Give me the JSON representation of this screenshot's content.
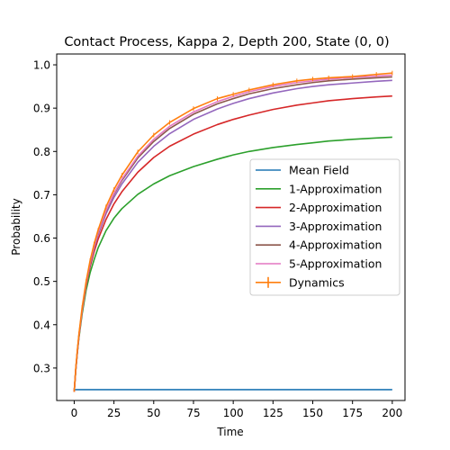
{
  "chart_data": {
    "type": "line",
    "title": "Contact Process, Kappa 2, Depth 200, State (0, 0)",
    "xlabel": "Time",
    "ylabel": "Probability",
    "xlim": [
      -11,
      208
    ],
    "ylim": [
      0.225,
      1.025
    ],
    "xticks": [
      0,
      25,
      50,
      75,
      100,
      125,
      150,
      175,
      200
    ],
    "yticks": [
      0.3,
      0.4,
      0.5,
      0.6,
      0.7,
      0.8,
      0.9,
      1.0
    ],
    "xtick_labels": [
      "0",
      "25",
      "50",
      "75",
      "100",
      "125",
      "150",
      "175",
      "200"
    ],
    "ytick_labels": [
      "0.3",
      "0.4",
      "0.5",
      "0.6",
      "0.7",
      "0.8",
      "0.9",
      "1.0"
    ],
    "grid": false,
    "legend_position": "center-right",
    "x": [
      0,
      1,
      2,
      3,
      5,
      7.5,
      10,
      12.5,
      15,
      20,
      25,
      30,
      40,
      50,
      60,
      75,
      90,
      100,
      110,
      125,
      140,
      150,
      160,
      175,
      190,
      200
    ],
    "series": [
      {
        "name": "Mean Field",
        "color": "#1f77b4",
        "values": [
          0.25,
          0.25,
          0.25,
          0.25,
          0.25,
          0.25,
          0.25,
          0.25,
          0.25,
          0.25,
          0.25,
          0.25,
          0.25,
          0.25,
          0.25,
          0.25,
          0.25,
          0.25,
          0.25,
          0.25,
          0.25,
          0.25,
          0.25,
          0.25,
          0.25,
          0.25
        ]
      },
      {
        "name": "1-Approximation",
        "color": "#2ca02c",
        "values": [
          0.245,
          0.295,
          0.335,
          0.37,
          0.425,
          0.48,
          0.52,
          0.55,
          0.577,
          0.617,
          0.646,
          0.668,
          0.701,
          0.725,
          0.744,
          0.765,
          0.782,
          0.792,
          0.8,
          0.809,
          0.816,
          0.82,
          0.824,
          0.828,
          0.831,
          0.833
        ]
      },
      {
        "name": "2-Approximation",
        "color": "#d62728",
        "values": [
          0.245,
          0.297,
          0.338,
          0.374,
          0.432,
          0.49,
          0.534,
          0.568,
          0.597,
          0.643,
          0.679,
          0.707,
          0.752,
          0.786,
          0.812,
          0.84,
          0.862,
          0.874,
          0.884,
          0.897,
          0.907,
          0.912,
          0.917,
          0.922,
          0.926,
          0.928
        ]
      },
      {
        "name": "3-Approximation",
        "color": "#9467bd",
        "values": [
          0.245,
          0.297,
          0.338,
          0.375,
          0.434,
          0.494,
          0.54,
          0.576,
          0.607,
          0.656,
          0.694,
          0.725,
          0.775,
          0.812,
          0.841,
          0.874,
          0.898,
          0.911,
          0.922,
          0.935,
          0.945,
          0.95,
          0.954,
          0.958,
          0.962,
          0.964
        ]
      },
      {
        "name": "4-Approximation",
        "color": "#8c564b",
        "values": [
          0.245,
          0.297,
          0.338,
          0.375,
          0.434,
          0.495,
          0.542,
          0.579,
          0.611,
          0.661,
          0.701,
          0.733,
          0.785,
          0.823,
          0.853,
          0.886,
          0.91,
          0.922,
          0.933,
          0.945,
          0.954,
          0.959,
          0.963,
          0.967,
          0.97,
          0.972
        ]
      },
      {
        "name": "5-Approximation",
        "color": "#e377c2",
        "values": [
          0.245,
          0.297,
          0.338,
          0.375,
          0.434,
          0.495,
          0.543,
          0.58,
          0.612,
          0.663,
          0.703,
          0.736,
          0.789,
          0.828,
          0.858,
          0.891,
          0.915,
          0.927,
          0.938,
          0.95,
          0.959,
          0.963,
          0.967,
          0.971,
          0.974,
          0.976
        ]
      },
      {
        "name": "Dynamics",
        "color": "#ff7f0e",
        "error_bars": true,
        "values": [
          0.245,
          0.3,
          0.342,
          0.379,
          0.44,
          0.5,
          0.548,
          0.586,
          0.618,
          0.672,
          0.712,
          0.745,
          0.799,
          0.838,
          0.867,
          0.899,
          0.922,
          0.932,
          0.942,
          0.954,
          0.963,
          0.967,
          0.97,
          0.973,
          0.978,
          0.981
        ]
      }
    ]
  }
}
